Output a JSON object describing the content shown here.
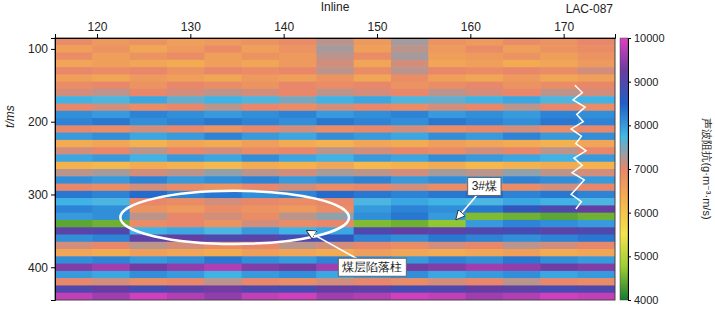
{
  "chart_data": {
    "type": "heatmap",
    "x_label": "Inline",
    "y_label": "t/ms",
    "xlim": [
      115.5,
      175.5
    ],
    "xticks": [
      120,
      130,
      140,
      150,
      160,
      170
    ],
    "ylim": [
      85,
      445
    ],
    "yticks": [
      100,
      200,
      300,
      400
    ],
    "x": [
      117.5,
      121.5,
      125.5,
      129.5,
      133.5,
      137.5,
      141.5,
      145.5,
      149.5,
      153.5,
      157.5,
      161.5,
      165.5,
      169.5,
      173.5
    ],
    "y": [
      90,
      100,
      110,
      120,
      130,
      140,
      150,
      160,
      170,
      180,
      190,
      200,
      210,
      220,
      230,
      240,
      250,
      260,
      270,
      280,
      290,
      300,
      310,
      320,
      330,
      340,
      350,
      360,
      370,
      380,
      390,
      400,
      410,
      420,
      430,
      440
    ],
    "z": [
      [
        6900,
        6700,
        6800,
        6600,
        6700,
        6800,
        6900,
        7200,
        6700,
        7300,
        6800,
        6700,
        6900,
        6800,
        7000
      ],
      [
        6600,
        6800,
        6500,
        6700,
        6900,
        6600,
        6800,
        7300,
        6600,
        7200,
        6700,
        6900,
        6600,
        6800,
        6900
      ],
      [
        6900,
        6600,
        6800,
        6900,
        6600,
        6800,
        6700,
        7200,
        6900,
        7300,
        6600,
        6700,
        6800,
        6600,
        6800
      ],
      [
        6500,
        6600,
        6500,
        6400,
        6600,
        6500,
        6700,
        7100,
        6500,
        7100,
        6500,
        6600,
        6400,
        6500,
        6700
      ],
      [
        7000,
        6900,
        7000,
        6800,
        7000,
        6900,
        7000,
        7200,
        6900,
        7200,
        7000,
        6900,
        7000,
        6900,
        7100
      ],
      [
        6600,
        6500,
        6700,
        6600,
        6500,
        6700,
        6600,
        6800,
        6500,
        6900,
        6600,
        6500,
        6700,
        6500,
        6600
      ],
      [
        6900,
        7000,
        6800,
        7000,
        6900,
        6800,
        7000,
        6900,
        7000,
        6800,
        6900,
        7000,
        6800,
        6900,
        7000
      ],
      [
        7100,
        7200,
        7000,
        7100,
        7200,
        7100,
        7000,
        7200,
        7100,
        7000,
        7200,
        7100,
        7000,
        7200,
        7100
      ],
      [
        7800,
        7700,
        7900,
        7600,
        7800,
        7700,
        7500,
        7800,
        7900,
        7700,
        7600,
        7800,
        7900,
        7700,
        7800
      ],
      [
        7000,
        7100,
        6900,
        7000,
        7200,
        7000,
        6900,
        7100,
        7000,
        6900,
        7100,
        7000,
        7200,
        7000,
        6900
      ],
      [
        8100,
        8000,
        8200,
        8100,
        8000,
        8100,
        8200,
        8000,
        8100,
        8200,
        8000,
        8100,
        8000,
        8200,
        8100
      ],
      [
        8200,
        8300,
        8100,
        8200,
        8300,
        8200,
        8100,
        8300,
        8200,
        8100,
        8300,
        8200,
        8100,
        8300,
        8200
      ],
      [
        7000,
        6900,
        7100,
        7000,
        6800,
        7000,
        7100,
        6900,
        7000,
        7100,
        6900,
        7000,
        7100,
        6900,
        7000
      ],
      [
        8000,
        8100,
        7900,
        8000,
        8200,
        8000,
        7900,
        8100,
        8000,
        7900,
        8100,
        8000,
        8200,
        8000,
        8100
      ],
      [
        6400,
        6500,
        6300,
        6500,
        6400,
        6600,
        6400,
        6300,
        6500,
        6400,
        6600,
        6500,
        6400,
        6300,
        6500
      ],
      [
        7100,
        7000,
        7200,
        7000,
        7100,
        6900,
        7000,
        7200,
        7100,
        7000,
        6900,
        7100,
        7000,
        7200,
        7000
      ],
      [
        7900,
        8000,
        7800,
        8000,
        7900,
        8100,
        7900,
        7800,
        8000,
        7900,
        8100,
        8000,
        7900,
        7800,
        8000
      ],
      [
        6300,
        6200,
        6400,
        6300,
        6200,
        6400,
        6300,
        6500,
        6200,
        6300,
        6400,
        6200,
        6300,
        6400,
        6300
      ],
      [
        7200,
        7300,
        7100,
        7200,
        7400,
        7200,
        7100,
        7300,
        7200,
        7100,
        7300,
        7200,
        7400,
        7200,
        7100
      ],
      [
        8100,
        8000,
        8200,
        8000,
        8100,
        8200,
        8000,
        8100,
        8200,
        8000,
        8100,
        8000,
        8200,
        8100,
        8000
      ],
      [
        7000,
        6900,
        7100,
        6900,
        6800,
        7000,
        7100,
        6900,
        7000,
        7100,
        6900,
        7000,
        6900,
        7100,
        7000
      ],
      [
        8300,
        8200,
        8400,
        8200,
        8300,
        8100,
        8200,
        8400,
        8300,
        8200,
        8300,
        8400,
        8200,
        8300,
        8200
      ],
      [
        7800,
        7700,
        7000,
        6900,
        7100,
        7000,
        6900,
        7000,
        7700,
        7900,
        7800,
        7700,
        7900,
        7800,
        7700
      ],
      [
        8200,
        8100,
        6800,
        6700,
        6900,
        6800,
        6700,
        6900,
        8000,
        8200,
        8100,
        8300,
        8700,
        9000,
        9200
      ],
      [
        8000,
        8100,
        7200,
        7000,
        7100,
        6900,
        7200,
        7400,
        8100,
        8300,
        8000,
        4600,
        4500,
        4400,
        4500
      ],
      [
        4400,
        4500,
        6900,
        7000,
        6800,
        7100,
        6900,
        7000,
        4600,
        4500,
        4700,
        8000,
        8200,
        8100,
        8000
      ],
      [
        9100,
        9000,
        7800,
        7900,
        7700,
        8000,
        7800,
        7900,
        9000,
        9200,
        9100,
        9000,
        8900,
        9100,
        9000
      ],
      [
        8100,
        8200,
        9100,
        9200,
        9000,
        9100,
        8900,
        8700,
        8200,
        8100,
        8300,
        8200,
        8100,
        8200,
        8300
      ],
      [
        7100,
        7000,
        7200,
        7100,
        6900,
        7000,
        7200,
        7100,
        7000,
        6900,
        7100,
        7000,
        7200,
        7100,
        7000
      ],
      [
        6500,
        6400,
        6600,
        6500,
        6400,
        6600,
        6500,
        6400,
        6600,
        6500,
        6400,
        6500,
        6600,
        6400,
        6500
      ],
      [
        8100,
        8200,
        8000,
        8100,
        8300,
        8100,
        8000,
        8200,
        8100,
        8000,
        8200,
        8100,
        8300,
        8100,
        8000
      ],
      [
        9400,
        9600,
        9300,
        9500,
        9700,
        9400,
        9300,
        9600,
        9500,
        9300,
        9400,
        9600,
        9500,
        9300,
        9400
      ],
      [
        8000,
        7900,
        8100,
        8000,
        7800,
        8000,
        8100,
        7900,
        8000,
        8100,
        7900,
        8000,
        8100,
        7900,
        8000
      ],
      [
        7000,
        7100,
        6900,
        7000,
        7200,
        7000,
        6900,
        7100,
        7000,
        6900,
        7100,
        7000,
        7200,
        7000,
        6900
      ],
      [
        9000,
        9200,
        8900,
        9100,
        9300,
        9000,
        8900,
        9200,
        9100,
        8900,
        9000,
        9200,
        9100,
        8900,
        9000
      ],
      [
        9800,
        9600,
        9900,
        9700,
        9500,
        9800,
        9900,
        9600,
        9700,
        9900,
        9800,
        9600,
        9700,
        9900,
        9800
      ]
    ],
    "colorbar": {
      "label": "声波阻抗(g·m⁻³·m/s)",
      "range": [
        4000,
        10000
      ],
      "ticks": [
        4000,
        5000,
        6000,
        7000,
        8000,
        9000,
        10000
      ]
    },
    "well_log": {
      "name": "LAC-087",
      "t": [
        150,
        160,
        170,
        180,
        190,
        200,
        210,
        220,
        230,
        240,
        250,
        260,
        270,
        280,
        290,
        300,
        310,
        320
      ],
      "x": [
        171.2,
        172.0,
        171.0,
        172.3,
        171.4,
        172.1,
        170.8,
        171.9,
        171.3,
        172.4,
        171.1,
        172.0,
        170.9,
        172.2,
        171.5,
        170.8,
        171.9,
        171.3
      ]
    },
    "annotations": [
      {
        "text": "3#煤",
        "x": 158.5,
        "y": 334,
        "text_x": 161.5,
        "text_y": 289
      },
      {
        "text": "煤层陷落柱",
        "x": 142.5,
        "y": 350,
        "text_x": 149.5,
        "text_y": 400,
        "region": [
          122.5,
          147,
          295,
          368
        ]
      }
    ]
  }
}
